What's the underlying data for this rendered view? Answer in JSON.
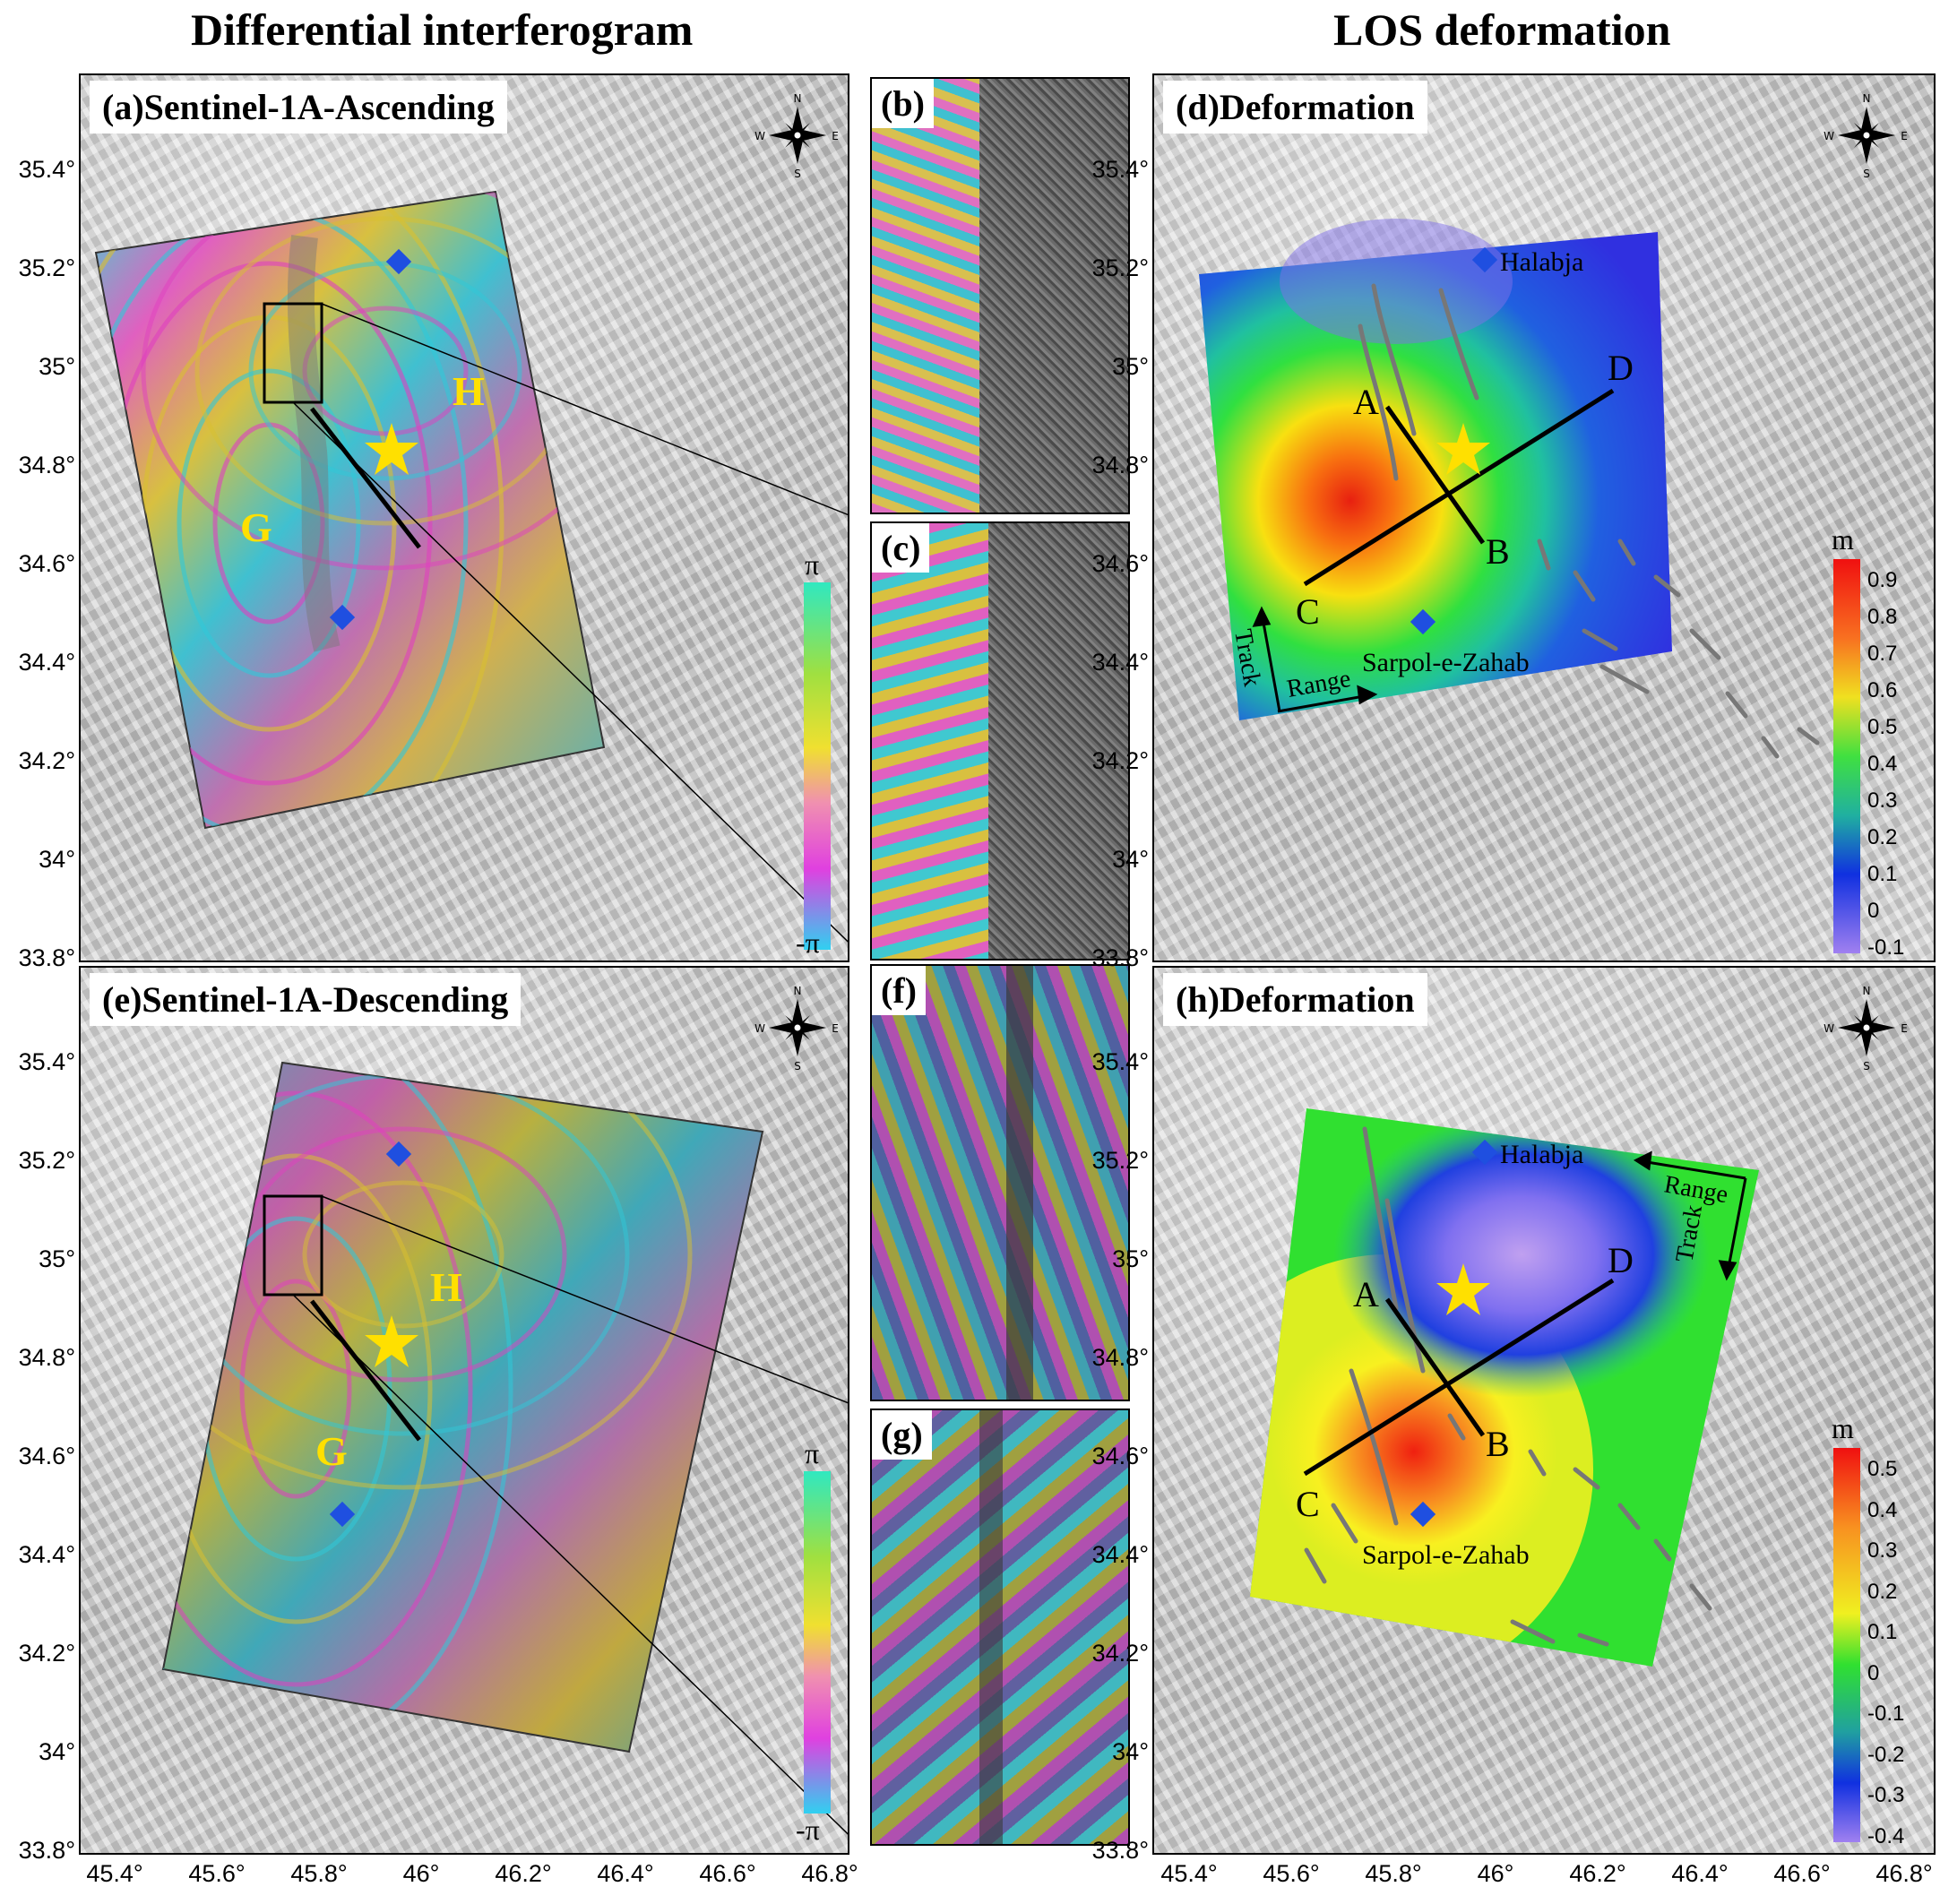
{
  "headings": {
    "left": "Differential interferogram",
    "right": "LOS deformation"
  },
  "panels": {
    "a": "(a)Sentinel-1A-Ascending",
    "b": "(b)",
    "c": "(c)",
    "d": "(d)Deformation",
    "e": "(e)Sentinel-1A-Descending",
    "f": "(f)",
    "g": "(g)",
    "h": "(h)Deformation"
  },
  "compass": {
    "n": "N",
    "s": "S",
    "w": "W",
    "e": "E"
  },
  "lat_ticks": [
    "35.4°",
    "35.2°",
    "35°",
    "34.8°",
    "34.6°",
    "34.4°",
    "34.2°",
    "34°",
    "33.8°"
  ],
  "lon_ticks": [
    "45.4°",
    "45.6°",
    "45.8°",
    "46°",
    "46.2°",
    "46.4°",
    "46.6°",
    "46.8°"
  ],
  "zone_labels": {
    "g": "G",
    "h": "H"
  },
  "profile_labels": {
    "a": "A",
    "b": "B",
    "c": "C",
    "d": "D"
  },
  "towns": {
    "halabja": "Halabja",
    "sarpol": "Sarpol-e-Zahab"
  },
  "geometry": {
    "track": "Track",
    "range": "Range"
  },
  "phase_colorbar": {
    "max": "π",
    "min": "-π"
  },
  "colorbar_d": {
    "unit": "m",
    "ticks": [
      "0.9",
      "0.8",
      "0.7",
      "0.6",
      "0.5",
      "0.4",
      "0.3",
      "0.2",
      "0.1",
      "0",
      "-0.1"
    ]
  },
  "colorbar_h": {
    "unit": "m",
    "ticks": [
      "0.5",
      "0.4",
      "0.3",
      "0.2",
      "0.1",
      "0",
      "-0.1",
      "-0.2",
      "-0.3",
      "-0.4"
    ]
  },
  "colors": {
    "epicenter": "#ffe000",
    "town": "#1f4fe0",
    "zone_label": "#ffe000"
  }
}
